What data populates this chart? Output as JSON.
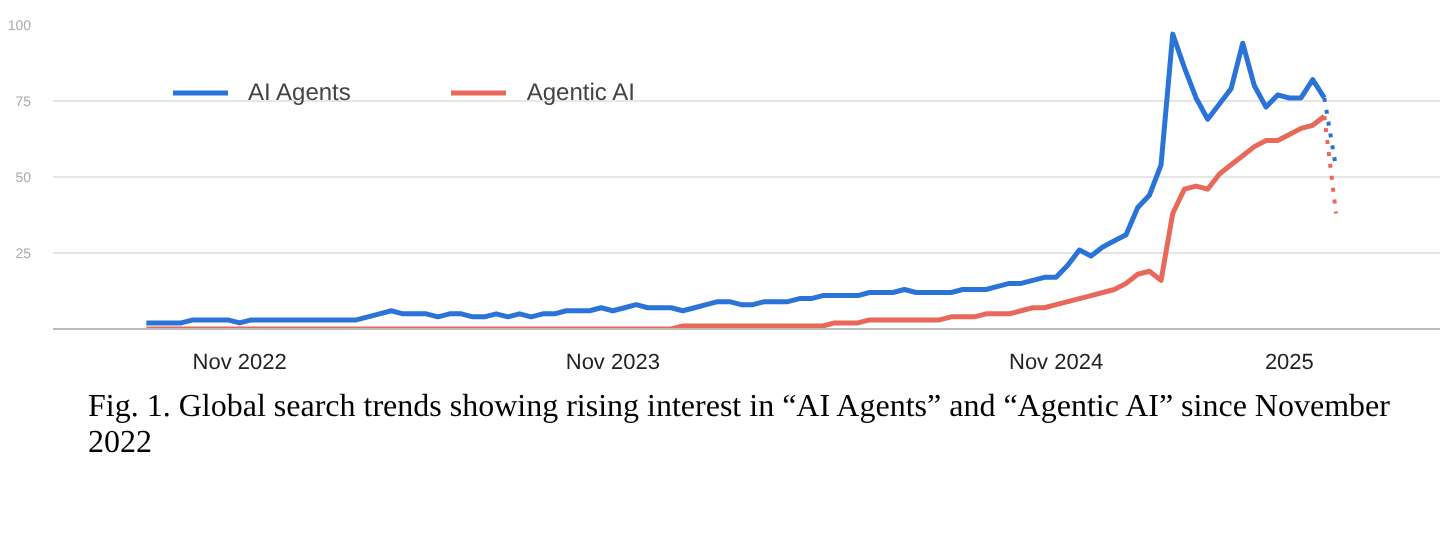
{
  "chart_data": {
    "type": "line",
    "categories": [
      null,
      null,
      null,
      null,
      null,
      null,
      null,
      null,
      "Nov 2022",
      null,
      null,
      null,
      null,
      null,
      null,
      null,
      null,
      null,
      null,
      null,
      null,
      null,
      null,
      null,
      null,
      null,
      null,
      null,
      null,
      null,
      null,
      null,
      null,
      null,
      null,
      null,
      null,
      null,
      null,
      null,
      "Nov 2023",
      null,
      null,
      null,
      null,
      null,
      null,
      null,
      null,
      null,
      null,
      null,
      null,
      null,
      null,
      null,
      null,
      null,
      null,
      null,
      null,
      null,
      null,
      null,
      null,
      null,
      null,
      null,
      null,
      null,
      null,
      null,
      null,
      null,
      null,
      null,
      null,
      null,
      "Nov 2024",
      null,
      null,
      null,
      null,
      null,
      null,
      null,
      null,
      null,
      null,
      null,
      null,
      null,
      null,
      null,
      null,
      null,
      null,
      null,
      "2025",
      null,
      null,
      null,
      null
    ],
    "series": [
      {
        "name": "AI Agents",
        "color": "#2a73d9",
        "values": [
          2,
          2,
          2,
          2,
          3,
          3,
          3,
          3,
          2,
          3,
          3,
          3,
          3,
          3,
          3,
          3,
          3,
          3,
          3,
          4,
          5,
          6,
          5,
          5,
          5,
          4,
          5,
          5,
          4,
          4,
          5,
          4,
          5,
          4,
          5,
          5,
          6,
          6,
          6,
          7,
          6,
          7,
          8,
          7,
          7,
          7,
          6,
          7,
          8,
          9,
          9,
          8,
          8,
          9,
          9,
          9,
          10,
          10,
          11,
          11,
          11,
          11,
          12,
          12,
          12,
          13,
          12,
          12,
          12,
          12,
          13,
          13,
          13,
          14,
          15,
          15,
          16,
          17,
          17,
          21,
          26,
          24,
          27,
          29,
          31,
          40,
          44,
          54,
          97,
          86,
          76,
          69,
          74,
          79,
          94,
          80,
          73,
          77,
          76,
          76,
          82,
          76,
          null
        ]
      },
      {
        "name": "Agentic AI",
        "color": "#e8695a",
        "values": [
          0,
          0,
          0,
          0,
          0,
          0,
          0,
          0,
          0,
          0,
          0,
          0,
          0,
          0,
          0,
          0,
          0,
          0,
          0,
          0,
          0,
          0,
          0,
          0,
          0,
          0,
          0,
          0,
          0,
          0,
          0,
          0,
          0,
          0,
          0,
          0,
          0,
          0,
          0,
          0,
          0,
          0,
          0,
          0,
          0,
          0,
          1,
          1,
          1,
          1,
          1,
          1,
          1,
          1,
          1,
          1,
          1,
          1,
          1,
          2,
          2,
          2,
          3,
          3,
          3,
          3,
          3,
          3,
          3,
          4,
          4,
          4,
          5,
          5,
          5,
          6,
          7,
          7,
          8,
          9,
          10,
          11,
          12,
          13,
          15,
          18,
          19,
          16,
          38,
          46,
          47,
          46,
          51,
          54,
          57,
          60,
          62,
          62,
          64,
          66,
          67,
          70,
          null
        ]
      },
      {
        "color": "#2a73d9",
        "line_style": "dotted",
        "values": [
          null,
          null,
          null,
          null,
          null,
          null,
          null,
          null,
          null,
          null,
          null,
          null,
          null,
          null,
          null,
          null,
          null,
          null,
          null,
          null,
          null,
          null,
          null,
          null,
          null,
          null,
          null,
          null,
          null,
          null,
          null,
          null,
          null,
          null,
          null,
          null,
          null,
          null,
          null,
          null,
          null,
          null,
          null,
          null,
          null,
          null,
          null,
          null,
          null,
          null,
          null,
          null,
          null,
          null,
          null,
          null,
          null,
          null,
          null,
          null,
          null,
          null,
          null,
          null,
          null,
          null,
          null,
          null,
          null,
          null,
          null,
          null,
          null,
          null,
          null,
          null,
          null,
          null,
          null,
          null,
          null,
          null,
          null,
          null,
          null,
          null,
          null,
          null,
          null,
          null,
          null,
          null,
          null,
          null,
          null,
          null,
          null,
          null,
          null,
          null,
          null,
          76,
          53
        ]
      },
      {
        "color": "#e8695a",
        "line_style": "dotted",
        "values": [
          null,
          null,
          null,
          null,
          null,
          null,
          null,
          null,
          null,
          null,
          null,
          null,
          null,
          null,
          null,
          null,
          null,
          null,
          null,
          null,
          null,
          null,
          null,
          null,
          null,
          null,
          null,
          null,
          null,
          null,
          null,
          null,
          null,
          null,
          null,
          null,
          null,
          null,
          null,
          null,
          null,
          null,
          null,
          null,
          null,
          null,
          null,
          null,
          null,
          null,
          null,
          null,
          null,
          null,
          null,
          null,
          null,
          null,
          null,
          null,
          null,
          null,
          null,
          null,
          null,
          null,
          null,
          null,
          null,
          null,
          null,
          null,
          null,
          null,
          null,
          null,
          null,
          null,
          null,
          null,
          null,
          null,
          null,
          null,
          null,
          null,
          null,
          null,
          null,
          null,
          null,
          null,
          null,
          null,
          null,
          null,
          null,
          null,
          null,
          null,
          null,
          70,
          38
        ]
      }
    ],
    "ylim": [
      0,
      100
    ],
    "yticks": [
      25,
      50,
      75,
      100
    ],
    "grid": "y",
    "legend": "top left",
    "annotations": [
      "Fig. 1. Global search trends showing rising interest in “AI Agents” and “Agentic AI” since November 2022"
    ]
  }
}
